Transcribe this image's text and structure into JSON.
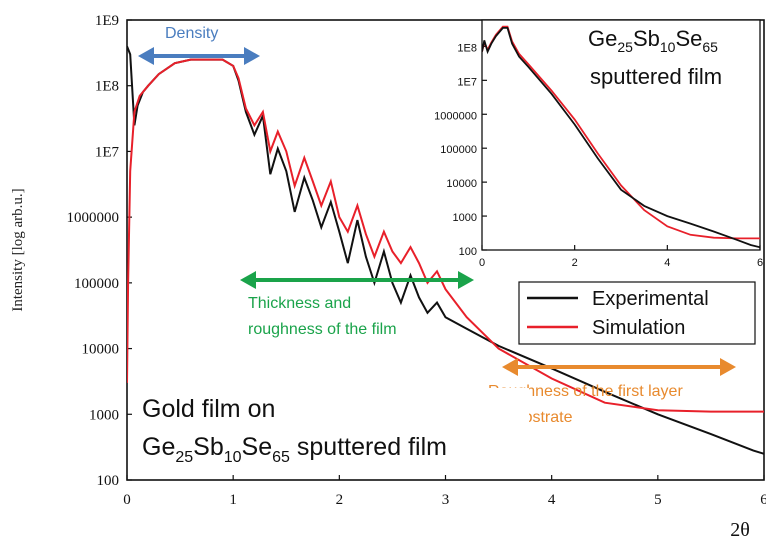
{
  "colors": {
    "experimental": "#111111",
    "simulation": "#e8202a",
    "density": "#4a7dbf",
    "thickness": "#1aa34a",
    "roughness": "#e88a2e"
  },
  "chart_data": [
    {
      "type": "line",
      "title": "",
      "xlabel": "2θ",
      "ylabel": "Intensity [log arb.u.]",
      "xlim": [
        0,
        6
      ],
      "ylim": [
        100,
        1000000000
      ],
      "yscale": "log",
      "x_ticks": [
        "0",
        "1",
        "2",
        "3",
        "4",
        "5",
        "6"
      ],
      "y_ticks": [
        "100",
        "1000",
        "10000",
        "100000",
        "1000000",
        "1E7",
        "1E8",
        "1E9"
      ],
      "legend": {
        "position": "right",
        "entries": [
          "Experimental",
          "Simulation"
        ]
      },
      "series": [
        {
          "name": "Experimental",
          "x": [
            0,
            0.03,
            0.07,
            0.1,
            0.15,
            0.2,
            0.3,
            0.45,
            0.6,
            0.75,
            0.9,
            1.0,
            1.05,
            1.12,
            1.2,
            1.28,
            1.35,
            1.42,
            1.5,
            1.58,
            1.67,
            1.75,
            1.83,
            1.92,
            2.0,
            2.08,
            2.17,
            2.25,
            2.33,
            2.42,
            2.5,
            2.58,
            2.67,
            2.75,
            2.83,
            2.92,
            3.0,
            3.2,
            3.5,
            4.0,
            4.5,
            5.0,
            5.5,
            5.9,
            6.0
          ],
          "y": [
            400000000,
            300000000,
            25000000,
            50000000,
            80000000,
            100000000,
            150000000,
            220000000,
            250000000,
            250000000,
            250000000,
            200000000,
            120000000,
            40000000,
            18000000,
            35000000,
            4500000,
            11000000,
            5000000,
            1200000,
            4000000,
            1800000,
            700000,
            1700000,
            600000,
            200000,
            900000,
            250000,
            100000,
            300000,
            100000,
            50000,
            130000,
            60000,
            35000,
            50000,
            30000,
            20000,
            11000,
            5000,
            2200,
            1000,
            500,
            280,
            250
          ]
        },
        {
          "name": "Simulation",
          "x": [
            0,
            0.01,
            0.03,
            0.07,
            0.12,
            0.2,
            0.3,
            0.45,
            0.6,
            0.75,
            0.9,
            1.0,
            1.05,
            1.12,
            1.2,
            1.28,
            1.35,
            1.42,
            1.5,
            1.58,
            1.67,
            1.75,
            1.83,
            1.92,
            2.0,
            2.08,
            2.17,
            2.25,
            2.33,
            2.42,
            2.5,
            2.58,
            2.67,
            2.75,
            2.83,
            2.92,
            3.0,
            3.2,
            3.5,
            4.0,
            4.5,
            5.0,
            5.5,
            6.0
          ],
          "y": [
            3000,
            100000,
            5000000,
            40000000,
            70000000,
            100000000,
            150000000,
            220000000,
            250000000,
            250000000,
            250000000,
            200000000,
            130000000,
            45000000,
            25000000,
            40000000,
            10000000,
            20000000,
            10000000,
            3000000,
            8000000,
            3500000,
            1500000,
            3500000,
            1000000,
            600000,
            1500000,
            550000,
            250000,
            600000,
            300000,
            200000,
            350000,
            200000,
            100000,
            150000,
            80000,
            30000,
            10000,
            3500,
            1500,
            1150,
            1100,
            1100
          ]
        }
      ]
    },
    {
      "type": "line",
      "title": "",
      "xlim": [
        0,
        6
      ],
      "ylim": [
        100,
        600000000
      ],
      "yscale": "log",
      "x_ticks": [
        "0",
        "2",
        "4",
        "6"
      ],
      "y_ticks": [
        "100",
        "1000",
        "10000",
        "100000",
        "1000000",
        "1E7",
        "1E8"
      ],
      "series": [
        {
          "name": "Experimental",
          "x": [
            0,
            0.05,
            0.12,
            0.2,
            0.3,
            0.45,
            0.55,
            0.65,
            0.8,
            1.0,
            1.5,
            2.0,
            2.5,
            3.0,
            3.5,
            4.0,
            4.5,
            5.0,
            5.5,
            5.8,
            6.0
          ],
          "y": [
            70000000,
            150000000,
            70000000,
            120000000,
            200000000,
            350000000,
            350000000,
            120000000,
            50000000,
            25000000,
            4000000,
            500000,
            50000,
            6000,
            2000,
            1000,
            600,
            350,
            200,
            140,
            120
          ]
        },
        {
          "name": "Simulation",
          "x": [
            0,
            0.05,
            0.12,
            0.2,
            0.3,
            0.45,
            0.55,
            0.65,
            0.8,
            1.0,
            1.5,
            2.0,
            2.5,
            3.0,
            3.5,
            4.0,
            4.5,
            5.0,
            5.5,
            6.0
          ],
          "y": [
            70000000,
            130000000,
            80000000,
            130000000,
            220000000,
            380000000,
            380000000,
            140000000,
            60000000,
            30000000,
            5000000,
            700000,
            70000,
            8000,
            1500,
            500,
            280,
            230,
            220,
            220
          ]
        }
      ]
    }
  ],
  "annotations": {
    "density": "Density",
    "thickness_line1": "Thickness and",
    "thickness_line2": "roughness of the film",
    "roughness_line1": "Roughness of the first layer",
    "roughness_line2": "or substrate"
  },
  "labels": {
    "main_line1": "Gold film on",
    "main_line2_ge": "Ge",
    "main_line2_ge_sub": "25",
    "main_line2_sb": "Sb",
    "main_line2_sb_sub": "10",
    "main_line2_se": "Se",
    "main_line2_se_sub": "65",
    "main_line2_rest": " sputtered film",
    "inset_ge": "Ge",
    "inset_ge_sub": "25",
    "inset_sb": "Sb",
    "inset_sb_sub": "10",
    "inset_se": "Se",
    "inset_se_sub": "65",
    "inset_line2": "sputtered film"
  }
}
